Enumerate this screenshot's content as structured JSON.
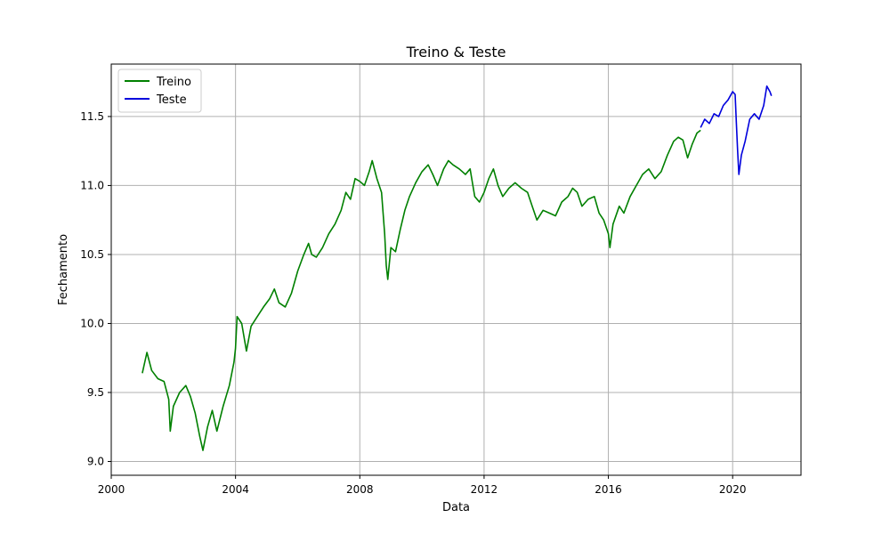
{
  "chart_data": {
    "type": "line",
    "title": "Treino & Teste",
    "xlabel": "Data",
    "ylabel": "Fechamento",
    "xlim": [
      2000.0,
      2022.2
    ],
    "ylim": [
      8.9,
      11.88
    ],
    "xticks": [
      "2000",
      "2004",
      "2008",
      "2012",
      "2016",
      "2020"
    ],
    "yticks": [
      "9.0",
      "9.5",
      "10.0",
      "10.5",
      "11.0",
      "11.5"
    ],
    "grid": true,
    "legend": "top-left",
    "series": [
      {
        "name": "Treino",
        "color": "#008000",
        "points": [
          [
            2001.0,
            9.64
          ],
          [
            2001.15,
            9.79
          ],
          [
            2001.3,
            9.66
          ],
          [
            2001.5,
            9.6
          ],
          [
            2001.7,
            9.58
          ],
          [
            2001.85,
            9.45
          ],
          [
            2001.9,
            9.22
          ],
          [
            2002.0,
            9.4
          ],
          [
            2002.2,
            9.5
          ],
          [
            2002.4,
            9.55
          ],
          [
            2002.55,
            9.47
          ],
          [
            2002.7,
            9.35
          ],
          [
            2002.85,
            9.18
          ],
          [
            2002.95,
            9.08
          ],
          [
            2003.1,
            9.25
          ],
          [
            2003.25,
            9.37
          ],
          [
            2003.4,
            9.22
          ],
          [
            2003.6,
            9.4
          ],
          [
            2003.8,
            9.55
          ],
          [
            2003.95,
            9.72
          ],
          [
            2004.0,
            9.82
          ],
          [
            2004.05,
            10.05
          ],
          [
            2004.2,
            10.0
          ],
          [
            2004.35,
            9.8
          ],
          [
            2004.5,
            9.98
          ],
          [
            2004.7,
            10.05
          ],
          [
            2004.9,
            10.12
          ],
          [
            2005.1,
            10.18
          ],
          [
            2005.25,
            10.25
          ],
          [
            2005.4,
            10.15
          ],
          [
            2005.6,
            10.12
          ],
          [
            2005.8,
            10.22
          ],
          [
            2006.0,
            10.38
          ],
          [
            2006.2,
            10.5
          ],
          [
            2006.35,
            10.58
          ],
          [
            2006.45,
            10.5
          ],
          [
            2006.6,
            10.48
          ],
          [
            2006.8,
            10.55
          ],
          [
            2007.0,
            10.65
          ],
          [
            2007.2,
            10.72
          ],
          [
            2007.4,
            10.82
          ],
          [
            2007.55,
            10.95
          ],
          [
            2007.7,
            10.9
          ],
          [
            2007.85,
            11.05
          ],
          [
            2008.0,
            11.03
          ],
          [
            2008.15,
            11.0
          ],
          [
            2008.3,
            11.1
          ],
          [
            2008.4,
            11.18
          ],
          [
            2008.55,
            11.05
          ],
          [
            2008.7,
            10.95
          ],
          [
            2008.8,
            10.65
          ],
          [
            2008.85,
            10.42
          ],
          [
            2008.9,
            10.32
          ],
          [
            2009.0,
            10.55
          ],
          [
            2009.15,
            10.52
          ],
          [
            2009.3,
            10.68
          ],
          [
            2009.45,
            10.82
          ],
          [
            2009.6,
            10.92
          ],
          [
            2009.8,
            11.02
          ],
          [
            2010.0,
            11.1
          ],
          [
            2010.2,
            11.15
          ],
          [
            2010.35,
            11.08
          ],
          [
            2010.5,
            11.0
          ],
          [
            2010.7,
            11.12
          ],
          [
            2010.85,
            11.18
          ],
          [
            2011.0,
            11.15
          ],
          [
            2011.2,
            11.12
          ],
          [
            2011.4,
            11.08
          ],
          [
            2011.55,
            11.12
          ],
          [
            2011.7,
            10.92
          ],
          [
            2011.85,
            10.88
          ],
          [
            2012.0,
            10.95
          ],
          [
            2012.15,
            11.05
          ],
          [
            2012.3,
            11.12
          ],
          [
            2012.45,
            11.0
          ],
          [
            2012.6,
            10.92
          ],
          [
            2012.8,
            10.98
          ],
          [
            2013.0,
            11.02
          ],
          [
            2013.2,
            10.98
          ],
          [
            2013.4,
            10.95
          ],
          [
            2013.55,
            10.85
          ],
          [
            2013.7,
            10.75
          ],
          [
            2013.9,
            10.82
          ],
          [
            2014.1,
            10.8
          ],
          [
            2014.3,
            10.78
          ],
          [
            2014.5,
            10.88
          ],
          [
            2014.7,
            10.92
          ],
          [
            2014.85,
            10.98
          ],
          [
            2015.0,
            10.95
          ],
          [
            2015.15,
            10.85
          ],
          [
            2015.35,
            10.9
          ],
          [
            2015.55,
            10.92
          ],
          [
            2015.7,
            10.8
          ],
          [
            2015.85,
            10.75
          ],
          [
            2016.0,
            10.65
          ],
          [
            2016.05,
            10.55
          ],
          [
            2016.15,
            10.72
          ],
          [
            2016.35,
            10.85
          ],
          [
            2016.5,
            10.8
          ],
          [
            2016.7,
            10.92
          ],
          [
            2016.9,
            11.0
          ],
          [
            2017.1,
            11.08
          ],
          [
            2017.3,
            11.12
          ],
          [
            2017.5,
            11.05
          ],
          [
            2017.7,
            11.1
          ],
          [
            2017.9,
            11.22
          ],
          [
            2018.1,
            11.32
          ],
          [
            2018.25,
            11.35
          ],
          [
            2018.4,
            11.33
          ],
          [
            2018.55,
            11.2
          ],
          [
            2018.7,
            11.3
          ],
          [
            2018.85,
            11.38
          ],
          [
            2018.97,
            11.4
          ]
        ]
      },
      {
        "name": "Teste",
        "color": "#0000dd",
        "points": [
          [
            2018.97,
            11.42
          ],
          [
            2019.1,
            11.48
          ],
          [
            2019.25,
            11.45
          ],
          [
            2019.4,
            11.52
          ],
          [
            2019.55,
            11.5
          ],
          [
            2019.7,
            11.58
          ],
          [
            2019.85,
            11.62
          ],
          [
            2020.0,
            11.68
          ],
          [
            2020.08,
            11.66
          ],
          [
            2020.12,
            11.45
          ],
          [
            2020.16,
            11.25
          ],
          [
            2020.2,
            11.08
          ],
          [
            2020.28,
            11.22
          ],
          [
            2020.4,
            11.32
          ],
          [
            2020.55,
            11.48
          ],
          [
            2020.7,
            11.52
          ],
          [
            2020.85,
            11.48
          ],
          [
            2021.0,
            11.58
          ],
          [
            2021.1,
            11.72
          ],
          [
            2021.2,
            11.68
          ],
          [
            2021.25,
            11.65
          ]
        ]
      }
    ]
  }
}
